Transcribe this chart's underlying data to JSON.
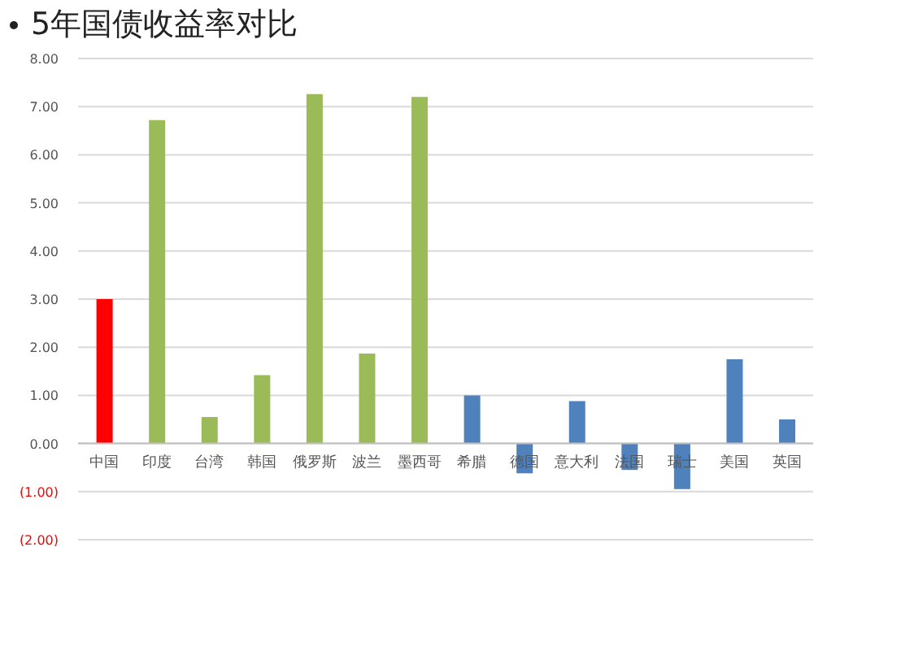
{
  "chart_data": {
    "type": "bar",
    "title": "5年国债收益率对比",
    "categories": [
      "中国",
      "印度",
      "台湾",
      "韩国",
      "俄罗斯",
      "波兰",
      "墨西哥",
      "希腊",
      "德国",
      "意大利",
      "法国",
      "瑞士",
      "美国",
      "英国"
    ],
    "values": [
      3.0,
      6.72,
      0.55,
      1.42,
      7.26,
      1.87,
      7.2,
      1.0,
      -0.62,
      0.88,
      -0.55,
      -0.95,
      1.75,
      0.5
    ],
    "colors": [
      "#ff0000",
      "#9bbb59",
      "#9bbb59",
      "#9bbb59",
      "#9bbb59",
      "#9bbb59",
      "#9bbb59",
      "#4f81bd",
      "#4f81bd",
      "#4f81bd",
      "#4f81bd",
      "#4f81bd",
      "#4f81bd",
      "#4f81bd"
    ],
    "ylim": [
      -2,
      8
    ],
    "yticks": [
      {
        "value": -2,
        "label": "(2.00)"
      },
      {
        "value": -1,
        "label": "(1.00)"
      },
      {
        "value": 0,
        "label": "0.00"
      },
      {
        "value": 1,
        "label": "1.00"
      },
      {
        "value": 2,
        "label": "2.00"
      },
      {
        "value": 3,
        "label": "3.00"
      },
      {
        "value": 4,
        "label": "4.00"
      },
      {
        "value": 5,
        "label": "5.00"
      },
      {
        "value": 6,
        "label": "6.00"
      },
      {
        "value": 7,
        "label": "7.00"
      },
      {
        "value": 8,
        "label": "8.00"
      }
    ],
    "grid": "y"
  }
}
